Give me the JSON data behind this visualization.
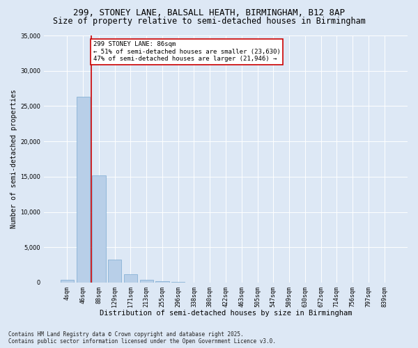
{
  "title_line1": "299, STONEY LANE, BALSALL HEATH, BIRMINGHAM, B12 8AP",
  "title_line2": "Size of property relative to semi-detached houses in Birmingham",
  "xlabel": "Distribution of semi-detached houses by size in Birmingham",
  "ylabel": "Number of semi-detached properties",
  "categories": [
    "4sqm",
    "46sqm",
    "88sqm",
    "129sqm",
    "171sqm",
    "213sqm",
    "255sqm",
    "296sqm",
    "338sqm",
    "380sqm",
    "422sqm",
    "463sqm",
    "505sqm",
    "547sqm",
    "589sqm",
    "630sqm",
    "672sqm",
    "714sqm",
    "756sqm",
    "797sqm",
    "839sqm"
  ],
  "values": [
    350,
    26300,
    15150,
    3300,
    1200,
    400,
    200,
    50,
    0,
    0,
    0,
    0,
    0,
    0,
    0,
    0,
    0,
    0,
    0,
    0,
    0
  ],
  "bar_color": "#b8cfe8",
  "bar_edge_color": "#7aaad0",
  "vline_color": "#cc0000",
  "annotation_title": "299 STONEY LANE: 86sqm",
  "annotation_line2": "← 51% of semi-detached houses are smaller (23,630)",
  "annotation_line3": "47% of semi-detached houses are larger (21,946) →",
  "annotation_box_color": "#ffffff",
  "annotation_box_edge": "#cc0000",
  "ylim": [
    0,
    35000
  ],
  "yticks": [
    0,
    5000,
    10000,
    15000,
    20000,
    25000,
    30000,
    35000
  ],
  "background_color": "#dde8f5",
  "plot_bg_color": "#dde8f5",
  "footer_line1": "Contains HM Land Registry data © Crown copyright and database right 2025.",
  "footer_line2": "Contains public sector information licensed under the Open Government Licence v3.0.",
  "title_fontsize": 9,
  "subtitle_fontsize": 8.5,
  "tick_fontsize": 6,
  "ylabel_fontsize": 7,
  "xlabel_fontsize": 7.5,
  "annotation_fontsize": 6.5,
  "footer_fontsize": 5.5
}
